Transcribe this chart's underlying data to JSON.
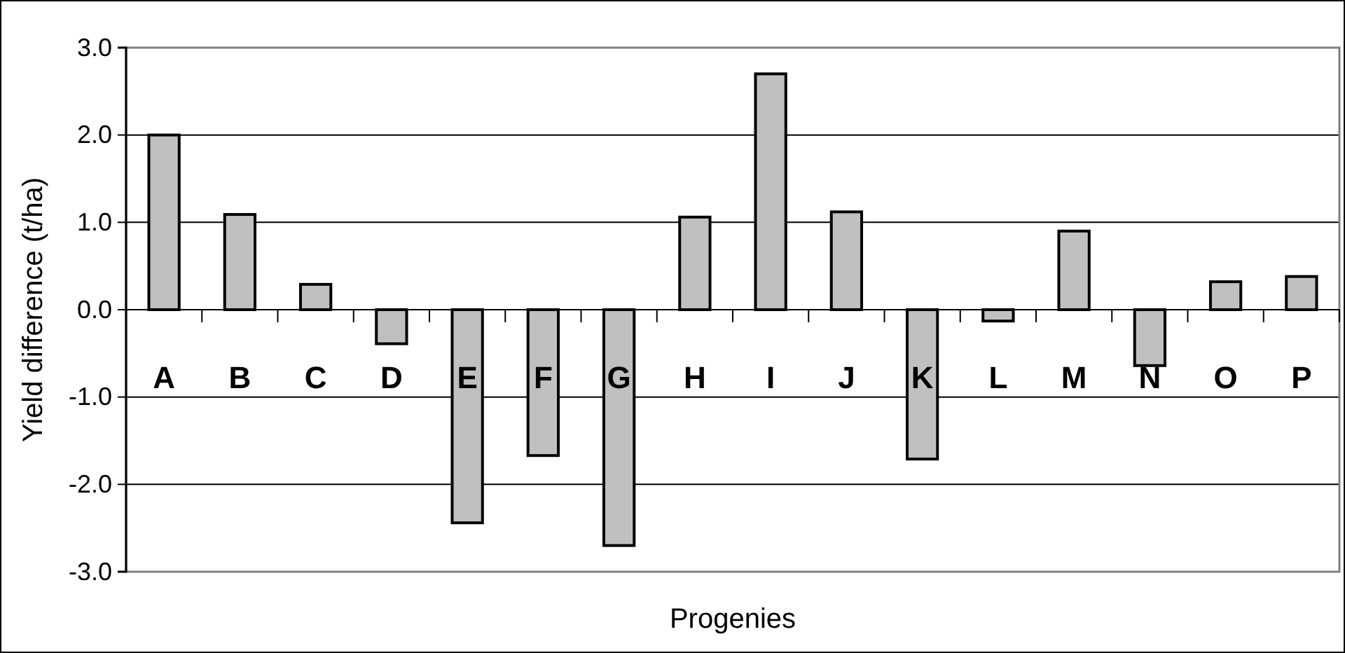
{
  "chart_data": {
    "type": "bar",
    "xlabel": "Progenies",
    "ylabel": "Yield difference (t/ha)",
    "categories": [
      "A",
      "B",
      "C",
      "D",
      "E",
      "F",
      "G",
      "H",
      "I",
      "J",
      "K",
      "L",
      "M",
      "N",
      "O",
      "P"
    ],
    "series": [
      {
        "color": "#c0c0c0",
        "values": [
          2.0,
          1.09,
          0.29,
          -0.39,
          -2.44,
          -1.67,
          -2.7,
          1.06,
          2.7,
          1.12,
          -1.71,
          -0.13,
          0.9,
          -0.64,
          0.32,
          0.38
        ]
      }
    ],
    "ylim": [
      -3,
      3
    ],
    "yticks": [
      {
        "value": -3,
        "label": "-3.0"
      },
      {
        "value": -2,
        "label": "-2.0"
      },
      {
        "value": -1,
        "label": "-1.0"
      },
      {
        "value": 0,
        "label": "0.0"
      },
      {
        "value": 1,
        "label": "1.0"
      },
      {
        "value": 2,
        "label": "2.0"
      },
      {
        "value": 3,
        "label": "3.0"
      }
    ],
    "grid": "y"
  }
}
